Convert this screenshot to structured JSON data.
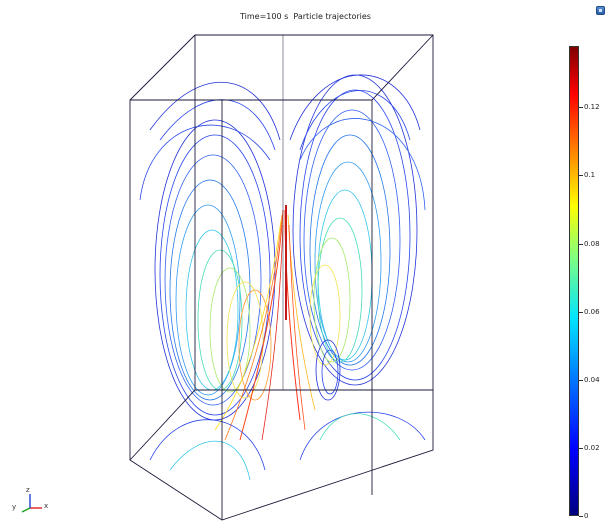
{
  "plot": {
    "title": "Time=100 s  Particle trajectories"
  },
  "colorbar": {
    "colors": [
      "#00007f",
      "#0000ff",
      "#0080ff",
      "#00e5ff",
      "#7fff7f",
      "#ffff00",
      "#ff8000",
      "#ff0000",
      "#800000"
    ],
    "ticks": [
      {
        "label": "0.12",
        "value": 0.12
      },
      {
        "label": "0.1",
        "value": 0.1
      },
      {
        "label": "0.08",
        "value": 0.08
      },
      {
        "label": "0.06",
        "value": 0.06
      },
      {
        "label": "0.04",
        "value": 0.04
      },
      {
        "label": "0.02",
        "value": 0.02
      },
      {
        "label": "0",
        "value": 0
      }
    ],
    "min": 0,
    "max": 0.138
  },
  "axis_triad": {
    "x_label": "x",
    "y_label": "y",
    "z_label": "z"
  },
  "toolbar": {
    "corner_icon": "window-icon"
  }
}
